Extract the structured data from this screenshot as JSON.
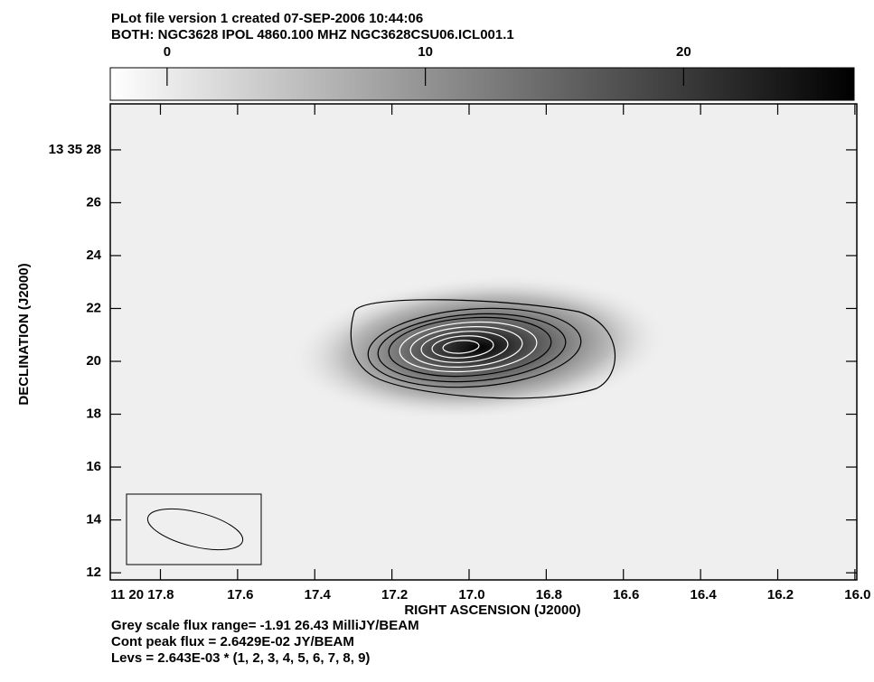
{
  "chart_data": {
    "type": "contour",
    "title": "PLot file version 1  created 07-SEP-2006 10:44:06",
    "subtitle": "BOTH: NGC3628  IPOL  4860.100 MHZ  NGC3628CSU06.ICL001.1",
    "xlabel": "RIGHT ASCENSION (J2000)",
    "ylabel": "DECLINATION (J2000)",
    "xlim": [
      17.93,
      15.995
    ],
    "xticks": [
      {
        "value": 17.8,
        "label": "11 20 17.8"
      },
      {
        "value": 17.6,
        "label": "17.6"
      },
      {
        "value": 17.4,
        "label": "17.4"
      },
      {
        "value": 17.2,
        "label": "17.2"
      },
      {
        "value": 17.0,
        "label": "17.0"
      },
      {
        "value": 16.8,
        "label": "16.8"
      },
      {
        "value": 16.6,
        "label": "16.6"
      },
      {
        "value": 16.4,
        "label": "16.4"
      },
      {
        "value": 16.2,
        "label": "16.2"
      },
      {
        "value": 16.0,
        "label": "16.0"
      }
    ],
    "ylim": [
      11.73,
      29.74
    ],
    "yticks": [
      {
        "value": 28,
        "label": "13 35 28"
      },
      26,
      24,
      22,
      20,
      18,
      16,
      14,
      12
    ],
    "colorbar": {
      "lim": [
        -2.2,
        26.6
      ],
      "ticks": [
        0,
        10,
        20
      ]
    },
    "notes": [
      "Grey scale flux range= -1.91 26.43 MilliJY/BEAM",
      "Cont peak flux =  2.6429E-02 JY/BEAM",
      "Levs = 2.643E-03 * (1, 2, 3, 4, 5, 6, 7, 8, 9)"
    ]
  }
}
